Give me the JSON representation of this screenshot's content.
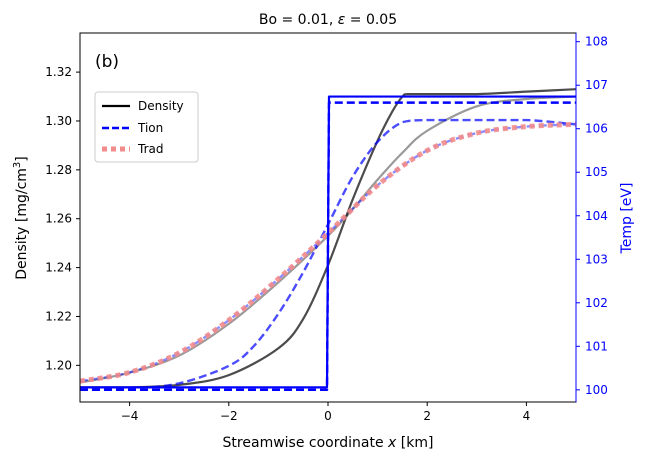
{
  "chart_data": {
    "type": "line",
    "title_prefix": "Bo = 0.01, ",
    "title_symbol": "ε",
    "title_suffix": " = 0.05",
    "panel_label": "(b)",
    "xlabel_prefix": "Streamwise coordinate ",
    "xlabel_var": "x",
    "xlabel_suffix": " [km]",
    "ylabel_left_main": "Density [mg/cm",
    "ylabel_left_sup": "3",
    "ylabel_left_end": "]",
    "ylabel_right": "Temp [eV]",
    "xlim": [
      -5,
      5
    ],
    "ylim_left": [
      1.185,
      1.336
    ],
    "ylim_right": [
      99.72,
      108.2
    ],
    "xticks": [
      -4,
      -2,
      0,
      2,
      4
    ],
    "xtick_labels": [
      "−4",
      "−2",
      "0",
      "2",
      "4"
    ],
    "yticks_left": [
      1.2,
      1.22,
      1.24,
      1.26,
      1.28,
      1.3,
      1.32
    ],
    "ytick_labels_left": [
      "1.20",
      "1.22",
      "1.24",
      "1.26",
      "1.28",
      "1.30",
      "1.32"
    ],
    "yticks_right": [
      100,
      101,
      102,
      103,
      104,
      105,
      106,
      107,
      108
    ],
    "ytick_labels_right": [
      "100",
      "101",
      "102",
      "103",
      "104",
      "105",
      "106",
      "107",
      "108"
    ],
    "legend": {
      "placement": "upper-left",
      "entries": [
        {
          "label": "Density",
          "color": "#000000",
          "style": "solid"
        },
        {
          "label": "Tion",
          "color": "#0000ff",
          "style": "dashed"
        },
        {
          "label": "Trad",
          "color": "#f28b8b",
          "style": "dotted"
        }
      ]
    },
    "series": [
      {
        "name": "Density",
        "axis": "left",
        "color": "#000000",
        "style": "solid",
        "opacity": 0.7,
        "x": [
          -5,
          -4,
          -3,
          -2,
          -1,
          -0.5,
          0,
          0.5,
          1,
          1.3,
          1.5,
          1.6,
          2,
          3,
          4,
          5
        ],
        "y": [
          1.191,
          1.191,
          1.192,
          1.196,
          1.207,
          1.219,
          1.241,
          1.268,
          1.292,
          1.304,
          1.31,
          1.311,
          1.311,
          1.311,
          1.312,
          1.313
        ]
      },
      {
        "name": "Density",
        "axis": "left",
        "color": "#000000",
        "style": "solid",
        "opacity": 0.4,
        "x": [
          -5,
          -4,
          -3,
          -2,
          -1,
          0,
          0.5,
          1,
          1.5,
          2,
          3,
          4,
          5
        ],
        "y": [
          1.193,
          1.197,
          1.204,
          1.217,
          1.234,
          1.253,
          1.264,
          1.276,
          1.287,
          1.296,
          1.306,
          1.309,
          1.31
        ]
      },
      {
        "name": "Tion",
        "axis": "right",
        "color": "#0000ff",
        "style": "dashed",
        "opacity": 1.0,
        "x": [
          -5,
          -0.02,
          0.02,
          5
        ],
        "y": [
          100.0,
          100.0,
          106.6,
          106.6
        ]
      },
      {
        "name": "Tion",
        "axis": "right",
        "color": "#0000ff",
        "style": "dashed",
        "opacity": 0.7,
        "x": [
          -5,
          -4,
          -3,
          -2,
          -1.5,
          -1,
          -0.5,
          0,
          0.5,
          1,
          1.5,
          2,
          3,
          4,
          5
        ],
        "y": [
          100.0,
          100.03,
          100.15,
          100.55,
          101.0,
          101.75,
          102.7,
          103.8,
          104.9,
          105.7,
          106.15,
          106.2,
          106.2,
          106.2,
          106.1
        ]
      },
      {
        "name": "Tion",
        "axis": "right",
        "color": "#0000ff",
        "style": "dashed",
        "opacity": 0.45,
        "x": [
          -5,
          -4,
          -3,
          -2,
          -1,
          0,
          1,
          2,
          3,
          4,
          5
        ],
        "y": [
          100.2,
          100.4,
          100.85,
          101.6,
          102.55,
          103.6,
          104.7,
          105.5,
          105.9,
          106.05,
          106.1
        ]
      },
      {
        "name": "Trad",
        "axis": "right",
        "color": "#f28b8b",
        "style": "dotted",
        "opacity": 0.9,
        "x": [
          -5,
          -4,
          -3,
          -2,
          -1,
          0,
          1,
          2,
          3,
          4,
          5
        ],
        "y": [
          100.2,
          100.4,
          100.85,
          101.6,
          102.55,
          103.6,
          104.7,
          105.5,
          105.9,
          106.05,
          106.1
        ]
      },
      {
        "name": "Density",
        "axis": "left",
        "color": "#0000ff",
        "style": "solid",
        "opacity": 1.0,
        "x": [
          -5,
          -0.02,
          0.02,
          5
        ],
        "y": [
          1.191,
          1.191,
          1.31,
          1.31
        ]
      }
    ]
  }
}
